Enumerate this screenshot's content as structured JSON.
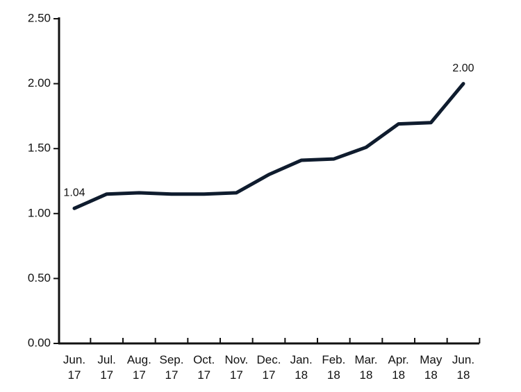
{
  "chart_data": {
    "type": "line",
    "categories": [
      "Jun.\n17",
      "Jul.\n17",
      "Aug.\n17",
      "Sep.\n17",
      "Oct.\n17",
      "Nov.\n17",
      "Dec.\n17",
      "Jan.\n18",
      "Feb.\n18",
      "Mar.\n18",
      "Apr.\n18",
      "May\n18",
      "Jun.\n18"
    ],
    "values": [
      1.04,
      1.15,
      1.16,
      1.15,
      1.15,
      1.16,
      1.3,
      1.41,
      1.42,
      1.51,
      1.69,
      1.7,
      2.0
    ],
    "value_labels": [
      "1.04",
      null,
      null,
      null,
      null,
      null,
      null,
      null,
      null,
      null,
      null,
      null,
      "2.00"
    ],
    "color": "#0f1c2e",
    "ylim": [
      0,
      2.5
    ],
    "yticks": [
      {
        "value": 0,
        "label": "0.00"
      },
      {
        "value": 0.5,
        "label": "0.50"
      },
      {
        "value": 1,
        "label": "1.00"
      },
      {
        "value": 1.5,
        "label": "1.50"
      },
      {
        "value": 2,
        "label": "2.00"
      },
      {
        "value": 2.5,
        "label": "2.50"
      }
    ],
    "grid": false
  }
}
